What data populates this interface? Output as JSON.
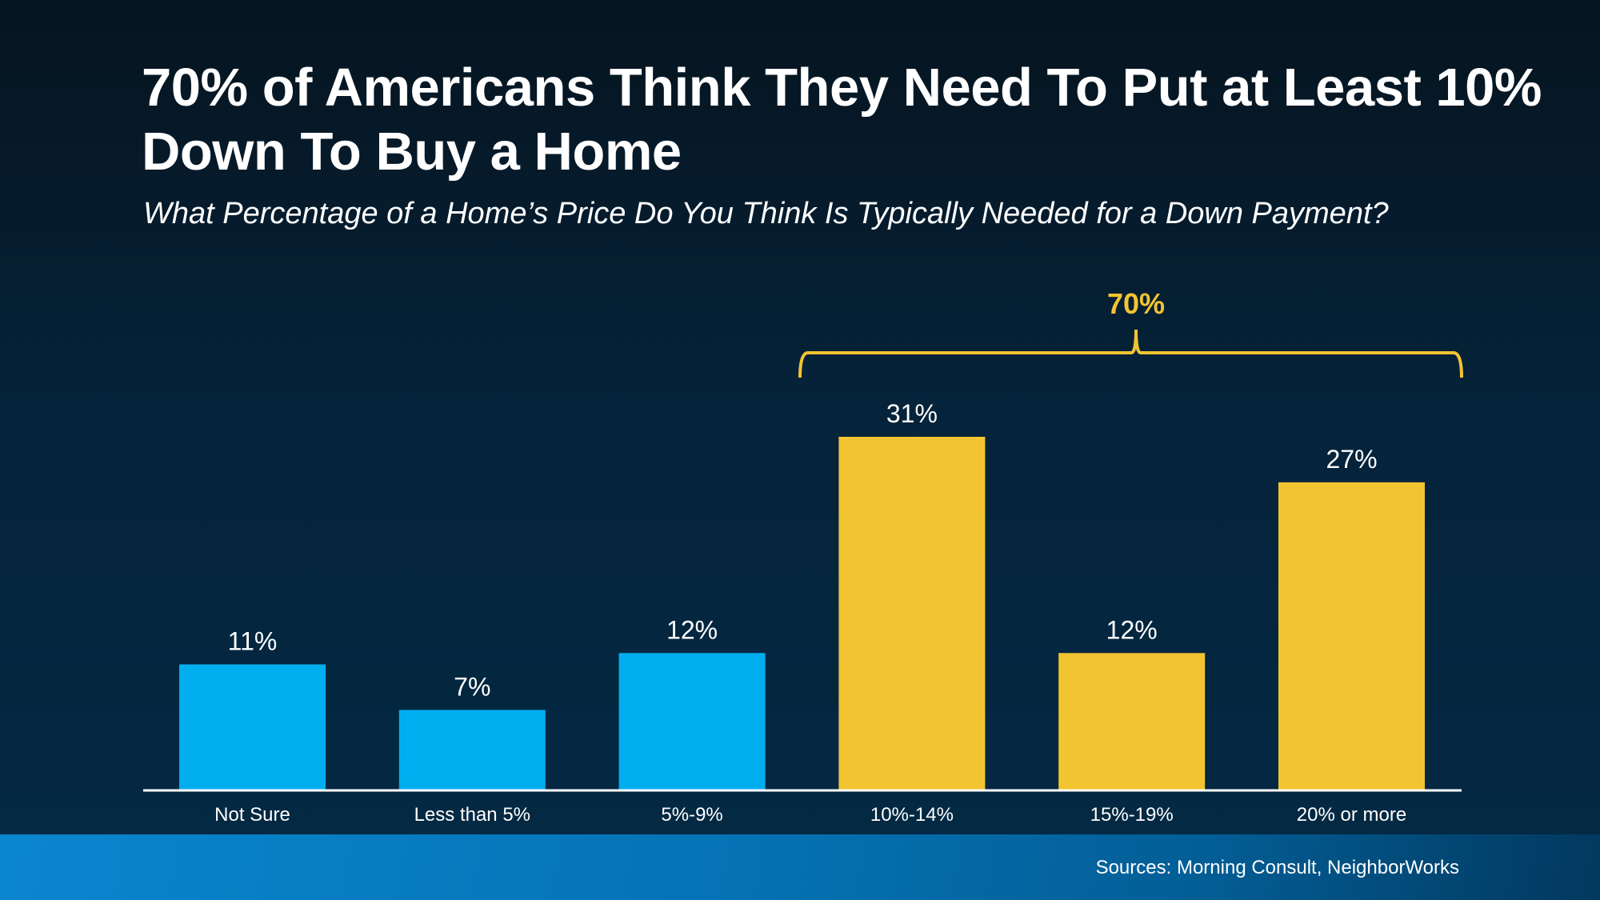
{
  "chart_data": {
    "type": "bar",
    "title": "70% of Americans Think They Need To Put at Least 10% Down To Buy a Home",
    "subtitle": "What Percentage of a Home’s Price Do You Think Is Typically Needed for a Down Payment?",
    "categories": [
      "Not Sure",
      "Less than 5%",
      "5%-9%",
      "10%-14%",
      "15%-19%",
      "20% or more"
    ],
    "values": [
      11,
      7,
      12,
      31,
      12,
      27
    ],
    "value_labels": [
      "11%",
      "7%",
      "12%",
      "31%",
      "12%",
      "27%"
    ],
    "bar_colors": [
      "#00aeef",
      "#00aeef",
      "#00aeef",
      "#f3c431",
      "#f3c431",
      "#f3c431"
    ],
    "xlabel": "",
    "ylabel": "",
    "ylim": [
      0,
      31
    ],
    "grid": false,
    "annotation": {
      "label": "70%",
      "spans": [
        "10%-14%",
        "15%-19%",
        "20% or more"
      ],
      "color": "#f3c431"
    }
  },
  "footer": {
    "source": "Sources: Morning Consult, NeighborWorks"
  }
}
